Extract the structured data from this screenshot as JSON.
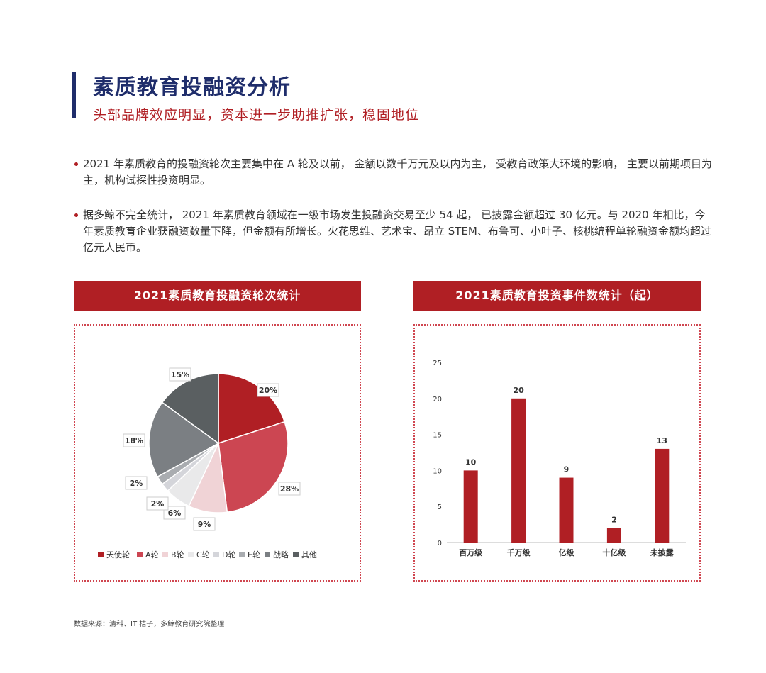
{
  "header": {
    "title": "素质教育投融资分析",
    "subtitle": "头部品牌效应明显，资本进一步助推扩张，稳固地位"
  },
  "paragraphs": [
    "2021 年素质教育的投融资轮次主要集中在 A 轮及以前， 金额以数千万元及以内为主， 受教育政策大环境的影响， 主要以前期项目为主，机构试探性投资明显。",
    "据多鲸不完全统计， 2021 年素质教育领域在一级市场发生投融资交易至少 54 起， 已披露金额超过 30 亿元。与 2020 年相比，今年素质教育企业获融资数量下降，但金额有所增长。火花思维、艺术宝、昂立 STEM、布鲁可、小叶子、核桃编程单轮融资金额均超过亿元人民币。"
  ],
  "source": "数据来源：清科、IT 桔子，多鲸教育研究院整理",
  "chart_data": [
    {
      "type": "pie",
      "title": "2021素质教育投融资轮次统计",
      "categories": [
        "天使轮",
        "A轮",
        "B轮",
        "C轮",
        "D轮",
        "E轮",
        "战略",
        "其他"
      ],
      "values": [
        20,
        28,
        9,
        6,
        2,
        2,
        18,
        15
      ],
      "labels": [
        "20%",
        "28%",
        "9%",
        "6%",
        "2%",
        "2%",
        "18%",
        "15%"
      ],
      "colors": [
        "#b01f24",
        "#cc4652",
        "#f0d3d6",
        "#e9e9ea",
        "#d4d5da",
        "#a9acb0",
        "#7b7f83",
        "#5a5f61"
      ],
      "legend": "bottom"
    },
    {
      "type": "bar",
      "title": "2021素质教育投资事件数统计（起）",
      "categories": [
        "百万级",
        "千万级",
        "亿级",
        "十亿级",
        "未披露"
      ],
      "values": [
        10,
        20,
        9,
        2,
        13
      ],
      "yticks": [
        0,
        5,
        10,
        15,
        20,
        25
      ],
      "ylim": [
        0,
        25
      ],
      "grid": false,
      "color": "#b01f24"
    }
  ]
}
